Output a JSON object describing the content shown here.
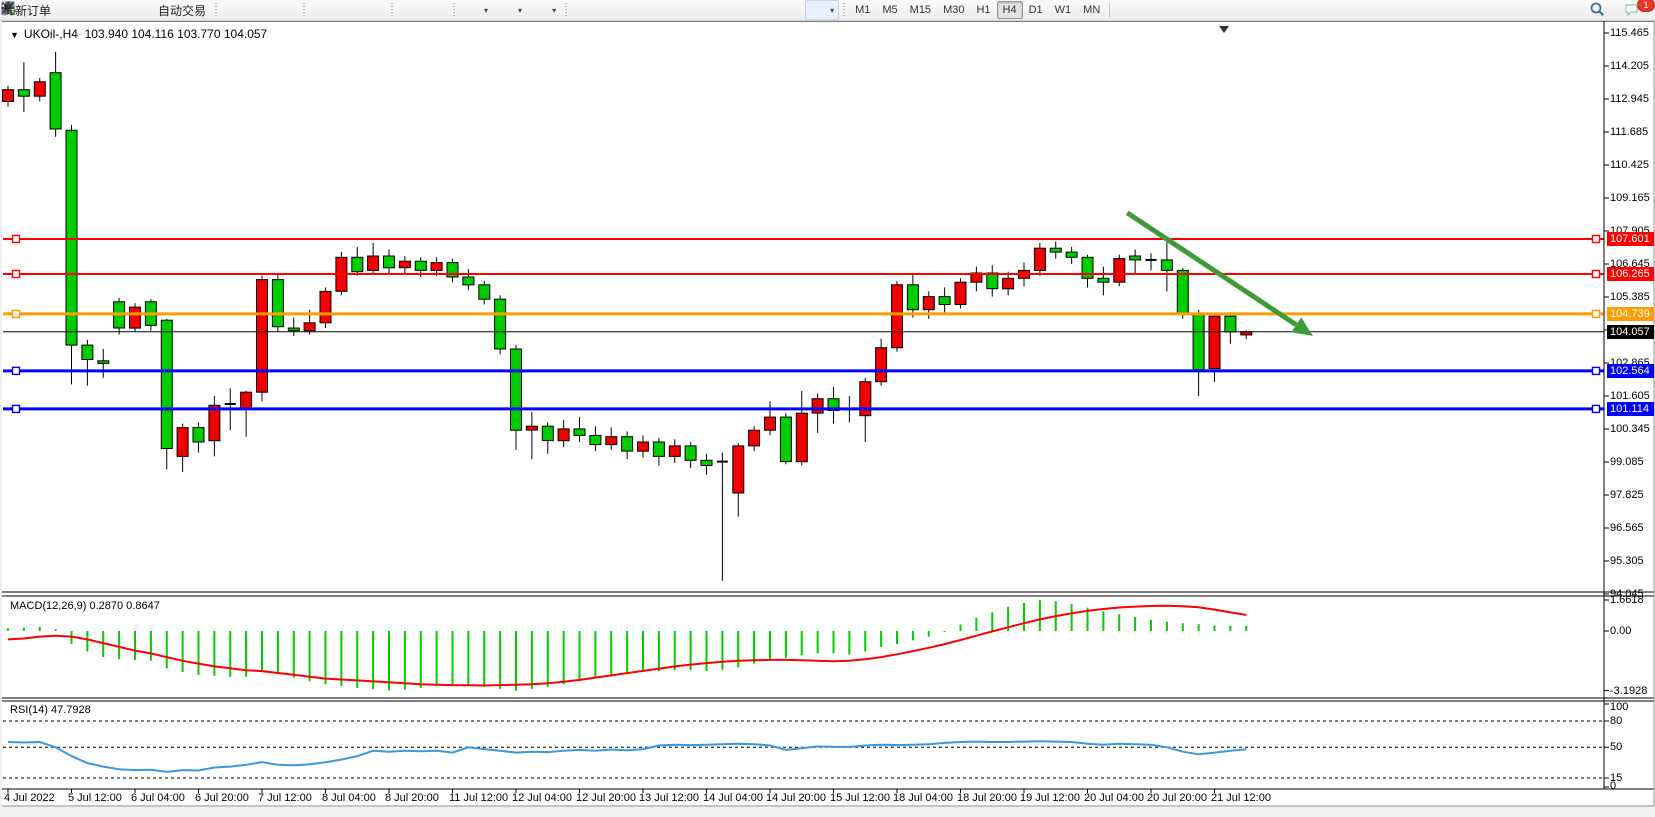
{
  "toolbar": {
    "new_order_label": "新订单",
    "autotrade_label": "自动交易",
    "icon_groups": [
      [
        "gold-diamond-icon",
        "accounts-icon",
        "signals-icon",
        "autotrade-icon"
      ],
      [
        "bar-chart-icon",
        "candle-chart-icon",
        "line-chart-icon"
      ],
      [
        "zoom-in-icon",
        "zoom-out-icon",
        "tile-windows-icon"
      ],
      [
        "auto-scroll-icon",
        "chart-shift-icon"
      ],
      [
        "indicators-icon",
        "periods-clock-icon",
        "template-icon"
      ],
      [
        "cursor-icon",
        "crosshair-icon",
        "vertical-line-icon",
        "horizontal-line-icon",
        "trendline-icon",
        "channel-icon",
        "fibonacci-icon",
        "text-icon",
        "text-label-icon",
        "shapes-icon"
      ]
    ],
    "right_icons": [
      "search-icon",
      "chat-icon"
    ],
    "periods": [
      "M1",
      "M5",
      "M15",
      "M30",
      "H1",
      "H4",
      "D1",
      "W1",
      "MN"
    ],
    "active_period": "H4",
    "notification_badge": "1"
  },
  "chart": {
    "title_symbol": "UKOil-,H4",
    "title_ohlc": "103.940 104.116 103.770 104.057"
  },
  "chart_data": {
    "type": "candlestick",
    "symbol": "UKOil-",
    "timeframe": "H4",
    "note": "OHLC and indicator series are visual estimates read from the rendered chart",
    "x_labels": [
      "4 Jul 2022",
      "5 Jul 12:00",
      "6 Jul 04:00",
      "6 Jul 20:00",
      "7 Jul 12:00",
      "8 Jul 04:00",
      "8 Jul 20:00",
      "11 Jul 12:00",
      "12 Jul 04:00",
      "12 Jul 20:00",
      "13 Jul 12:00",
      "14 Jul 04:00",
      "14 Jul 20:00",
      "15 Jul 12:00",
      "18 Jul 04:00",
      "18 Jul 20:00",
      "19 Jul 12:00",
      "20 Jul 04:00",
      "20 Jul 20:00",
      "21 Jul 12:00"
    ],
    "bars_per_x_label": 4,
    "price_axis_ticks": [
      "115.465",
      "114.205",
      "112.945",
      "111.685",
      "110.425",
      "109.165",
      "107.905",
      "106.645",
      "105.385",
      "104.125",
      "102.865",
      "101.605",
      "100.345",
      "99.085",
      "97.825",
      "96.565",
      "95.305",
      "94.045"
    ],
    "ohlc": {
      "open": [
        112.85,
        113.3,
        113.05,
        113.95,
        111.75,
        103.55,
        102.95,
        105.2,
        104.2,
        105.2,
        104.5,
        99.3,
        100.4,
        99.9,
        101.3,
        101.1,
        101.75,
        106.05,
        104.2,
        104.1,
        104.4,
        105.6,
        106.9,
        106.4,
        106.95,
        106.5,
        106.75,
        106.4,
        106.7,
        106.15,
        105.85,
        105.3,
        103.4,
        100.3,
        100.45,
        99.9,
        100.35,
        100.1,
        99.75,
        100.05,
        99.5,
        99.85,
        99.3,
        99.7,
        99.15,
        99.1,
        97.9,
        99.7,
        100.3,
        100.8,
        99.1,
        100.95,
        101.5,
        101.1,
        100.85,
        102.15,
        103.45,
        105.85,
        104.9,
        105.4,
        105.1,
        105.95,
        106.3,
        105.7,
        106.1,
        106.4,
        107.25,
        107.1,
        106.9,
        106.1,
        105.95,
        106.95,
        106.8,
        106.8,
        106.4,
        104.75,
        102.65,
        104.65,
        103.94
      ],
      "high": [
        113.45,
        114.35,
        113.75,
        114.75,
        111.95,
        103.75,
        103.4,
        105.35,
        105.15,
        105.3,
        104.55,
        100.55,
        100.6,
        101.6,
        101.9,
        101.8,
        106.2,
        106.25,
        104.6,
        104.9,
        105.75,
        107.1,
        107.3,
        107.45,
        107.2,
        106.95,
        106.9,
        106.9,
        106.85,
        106.45,
        106.0,
        105.45,
        103.55,
        101.0,
        100.6,
        100.7,
        100.8,
        100.45,
        100.4,
        100.25,
        100.1,
        100.0,
        99.95,
        99.85,
        99.4,
        99.45,
        99.8,
        100.45,
        101.4,
        100.95,
        101.8,
        101.7,
        101.95,
        101.6,
        102.3,
        103.8,
        106.0,
        106.3,
        105.6,
        105.75,
        106.1,
        106.55,
        106.6,
        106.35,
        106.7,
        107.45,
        107.5,
        107.3,
        107.0,
        106.55,
        107.0,
        107.2,
        107.05,
        107.55,
        106.5,
        104.9,
        104.75,
        104.8,
        104.116
      ],
      "low": [
        112.65,
        112.45,
        112.85,
        111.5,
        102.05,
        102.0,
        102.3,
        103.95,
        104.05,
        104.1,
        98.8,
        98.7,
        99.45,
        99.3,
        100.3,
        100.05,
        101.4,
        104.05,
        103.9,
        103.95,
        104.2,
        105.45,
        106.2,
        106.25,
        106.3,
        106.3,
        106.15,
        106.2,
        105.95,
        105.65,
        105.1,
        103.2,
        99.55,
        99.2,
        99.4,
        99.65,
        99.85,
        99.5,
        99.55,
        99.2,
        99.25,
        98.95,
        99.05,
        98.85,
        98.6,
        94.55,
        97.0,
        99.5,
        100.1,
        99.0,
        98.95,
        100.2,
        100.55,
        100.6,
        99.85,
        102.0,
        103.3,
        104.6,
        104.55,
        104.8,
        104.95,
        105.6,
        105.4,
        105.45,
        105.8,
        106.2,
        106.85,
        106.65,
        105.75,
        105.45,
        105.8,
        106.3,
        106.4,
        105.6,
        104.55,
        101.6,
        102.15,
        103.6,
        103.77
      ],
      "close": [
        113.3,
        113.05,
        113.6,
        111.8,
        103.55,
        103.0,
        102.85,
        104.2,
        105.0,
        104.3,
        99.6,
        100.4,
        99.85,
        101.25,
        101.3,
        101.75,
        106.05,
        104.25,
        104.1,
        104.4,
        105.6,
        106.9,
        106.35,
        106.95,
        106.5,
        106.75,
        106.4,
        106.7,
        106.15,
        105.85,
        105.3,
        103.4,
        100.3,
        100.45,
        99.9,
        100.35,
        100.1,
        99.75,
        100.05,
        99.5,
        99.85,
        99.3,
        99.7,
        99.15,
        98.95,
        99.05,
        99.7,
        100.3,
        100.8,
        99.1,
        100.95,
        101.5,
        101.05,
        101.1,
        102.15,
        103.45,
        105.85,
        104.9,
        105.4,
        105.1,
        105.95,
        106.3,
        105.7,
        106.1,
        106.4,
        107.25,
        107.1,
        106.9,
        106.1,
        105.95,
        106.85,
        106.8,
        106.75,
        106.4,
        104.75,
        102.6,
        104.65,
        104.05,
        104.057
      ]
    },
    "levels": [
      {
        "price": 107.601,
        "label": "107.601",
        "color": "#FF0000",
        "width": 2,
        "handles": true
      },
      {
        "price": 106.265,
        "label": "106.265",
        "color": "#FF0000",
        "width": 2,
        "handles": true
      },
      {
        "price": 104.739,
        "label": "104.739",
        "color": "#FF9C00",
        "width": 3,
        "handles": true
      },
      {
        "price": 104.057,
        "label": "104.057",
        "color": "#000000",
        "width": 1,
        "handles": false
      },
      {
        "price": 102.564,
        "label": "102.564",
        "color": "#0000FF",
        "width": 3,
        "handles": true
      },
      {
        "price": 101.114,
        "label": "101.114",
        "color": "#0000FF",
        "width": 3,
        "handles": true
      }
    ],
    "trend_arrow": {
      "start_bar": 70.5,
      "start_price": 108.6,
      "end_bar": 82.2,
      "end_price": 103.9,
      "color": "#3F9B36"
    },
    "shift_marker_bar": 76.6,
    "colors": {
      "up": "#F20000",
      "down": "#00CC00",
      "wick": "#000000",
      "background": "#FFFFFF",
      "macd_histogram": "#00CC00",
      "macd_signal": "#FF0000",
      "rsi_line": "#3B97E0"
    },
    "indicators": {
      "macd": {
        "label": "MACD(12,26,9) 0.2870 0.8647",
        "axis_labels": [
          "1.6618",
          "0.00",
          "-3.1928"
        ],
        "main": [
          0.15,
          0.18,
          0.22,
          0.1,
          -0.7,
          -1.1,
          -1.4,
          -1.5,
          -1.55,
          -1.6,
          -2.0,
          -2.2,
          -2.35,
          -2.4,
          -2.45,
          -2.45,
          -2.2,
          -2.3,
          -2.5,
          -2.7,
          -2.85,
          -2.95,
          -3.05,
          -3.12,
          -3.19,
          -3.15,
          -3.05,
          -2.95,
          -2.9,
          -2.95,
          -3.0,
          -3.1,
          -3.19,
          -3.1,
          -3.0,
          -2.85,
          -2.7,
          -2.55,
          -2.4,
          -2.3,
          -2.2,
          -2.15,
          -2.1,
          -2.1,
          -2.15,
          -2.1,
          -1.95,
          -1.75,
          -1.55,
          -1.45,
          -1.3,
          -1.2,
          -1.2,
          -1.25,
          -1.1,
          -0.85,
          -0.7,
          -0.5,
          -0.3,
          -0.05,
          0.35,
          0.7,
          1.0,
          1.3,
          1.5,
          1.66,
          1.6,
          1.45,
          1.25,
          1.05,
          0.9,
          0.75,
          0.6,
          0.5,
          0.42,
          0.36,
          0.3,
          0.28,
          0.287
        ],
        "signal": [
          -0.45,
          -0.4,
          -0.3,
          -0.25,
          -0.3,
          -0.45,
          -0.65,
          -0.85,
          -1.05,
          -1.2,
          -1.4,
          -1.6,
          -1.75,
          -1.9,
          -2.0,
          -2.1,
          -2.15,
          -2.25,
          -2.35,
          -2.45,
          -2.55,
          -2.6,
          -2.65,
          -2.7,
          -2.75,
          -2.8,
          -2.85,
          -2.88,
          -2.9,
          -2.91,
          -2.92,
          -2.9,
          -2.88,
          -2.85,
          -2.8,
          -2.72,
          -2.62,
          -2.5,
          -2.38,
          -2.26,
          -2.14,
          -2.02,
          -1.9,
          -1.8,
          -1.72,
          -1.65,
          -1.6,
          -1.57,
          -1.55,
          -1.55,
          -1.57,
          -1.6,
          -1.62,
          -1.6,
          -1.52,
          -1.4,
          -1.25,
          -1.08,
          -0.9,
          -0.7,
          -0.48,
          -0.25,
          -0.02,
          0.2,
          0.42,
          0.62,
          0.8,
          0.95,
          1.08,
          1.18,
          1.26,
          1.31,
          1.34,
          1.35,
          1.33,
          1.27,
          1.15,
          1.0,
          0.8647
        ]
      },
      "rsi": {
        "label": "RSI(14) 47.7928",
        "axis_labels": [
          "100",
          "80",
          "50",
          "15",
          "0"
        ],
        "levels": [
          80,
          50,
          15
        ],
        "values": [
          56,
          55.5,
          56,
          50,
          40,
          32,
          28,
          25,
          24,
          24.5,
          22,
          24,
          23.5,
          27,
          28,
          30,
          33,
          30,
          29.5,
          30.5,
          33,
          36,
          40,
          46,
          45,
          46,
          45.5,
          46,
          44,
          50,
          48,
          46,
          44,
          45,
          44.5,
          46,
          47,
          46,
          47.5,
          46.5,
          48,
          52,
          53,
          52.5,
          53,
          53.5,
          54,
          53.5,
          52,
          47,
          49,
          51,
          50.5,
          50.5,
          52,
          53,
          52.5,
          53,
          53.5,
          55,
          56,
          56.5,
          56,
          56,
          56.5,
          57,
          56.5,
          56,
          54,
          53,
          54,
          53.5,
          53,
          50,
          45,
          42,
          44,
          46,
          47.79
        ]
      }
    }
  }
}
